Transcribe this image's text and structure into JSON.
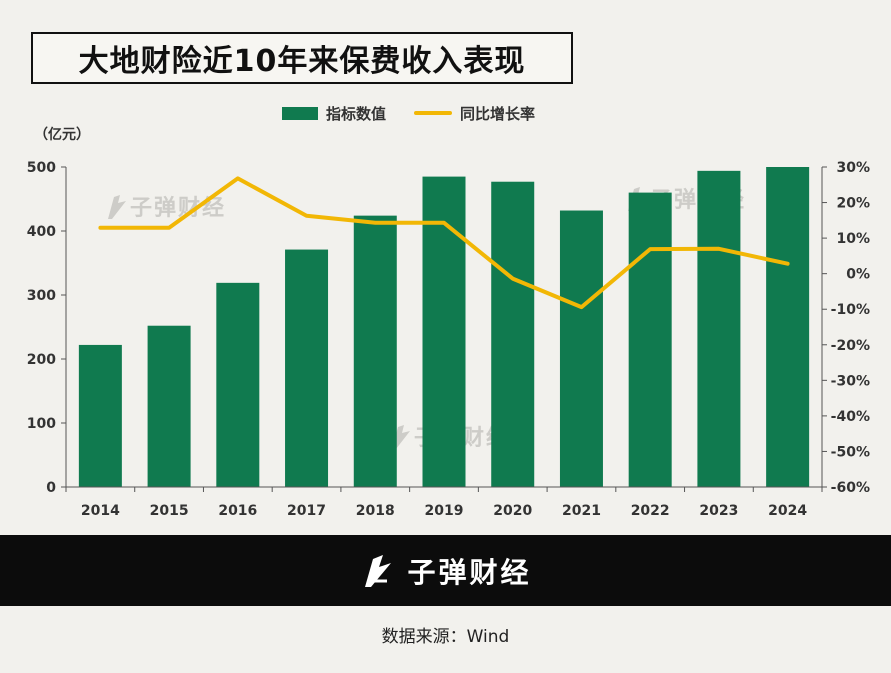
{
  "title": "大地财险近10年来保费收入表现",
  "unit_label": "（亿元）",
  "legend": {
    "bar": "指标数值",
    "line": "同比增长率"
  },
  "watermark_text": "子弹财经",
  "footer": {
    "brand": "子弹财经",
    "source": "数据来源：Wind"
  },
  "colors": {
    "bar": "#107a4f",
    "line": "#f2b705",
    "background": "#f2f1ed",
    "band": "#0c0c0c"
  },
  "chart_data": {
    "type": "bar",
    "title": "大地财险近10年来保费收入表现",
    "categories": [
      "2014",
      "2015",
      "2016",
      "2017",
      "2018",
      "2019",
      "2020",
      "2021",
      "2022",
      "2023",
      "2024"
    ],
    "series": [
      {
        "name": "指标数值",
        "type": "bar",
        "axis": "left",
        "values": [
          222,
          252,
          319,
          371,
          424,
          485,
          477,
          432,
          460,
          494,
          500
        ]
      },
      {
        "name": "同比增长率",
        "type": "line",
        "axis": "right",
        "values": [
          12.9,
          12.9,
          26.8,
          16.3,
          14.3,
          14.3,
          -1.4,
          -9.4,
          6.9,
          7.0,
          2.8
        ]
      }
    ],
    "ylim_left": [
      0,
      500
    ],
    "yticks_left": [
      "0",
      "100",
      "200",
      "300",
      "400",
      "500"
    ],
    "ylim_right": [
      -60,
      30
    ],
    "yticks_right": [
      "-60%",
      "-50%",
      "-40%",
      "-30%",
      "-20%",
      "-10%",
      "0%",
      "10%",
      "20%",
      "30%"
    ],
    "grid": false
  }
}
